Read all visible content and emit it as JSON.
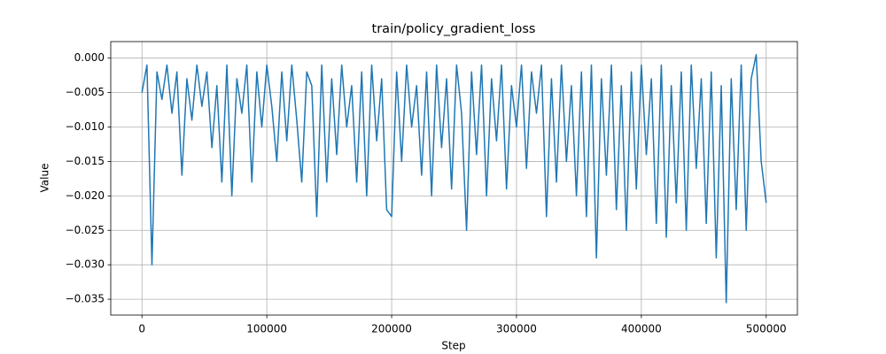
{
  "chart_data": {
    "type": "line",
    "title": "train/policy_gradient_loss",
    "x_label": "Step",
    "y_label": "Value",
    "x": [
      0,
      4000,
      8000,
      12000,
      16000,
      20000,
      24000,
      28000,
      32000,
      36000,
      40000,
      44000,
      48000,
      52000,
      56000,
      60000,
      64000,
      68000,
      72000,
      76000,
      80000,
      84000,
      88000,
      92000,
      96000,
      100000,
      104000,
      108000,
      112000,
      116000,
      120000,
      124000,
      128000,
      132000,
      136000,
      140000,
      144000,
      148000,
      152000,
      156000,
      160000,
      164000,
      168000,
      172000,
      176000,
      180000,
      184000,
      188000,
      192000,
      196000,
      200000,
      204000,
      208000,
      212000,
      216000,
      220000,
      224000,
      228000,
      232000,
      236000,
      240000,
      244000,
      248000,
      252000,
      256000,
      260000,
      264000,
      268000,
      272000,
      276000,
      280000,
      284000,
      288000,
      292000,
      296000,
      300000,
      304000,
      308000,
      312000,
      316000,
      320000,
      324000,
      328000,
      332000,
      336000,
      340000,
      344000,
      348000,
      352000,
      356000,
      360000,
      364000,
      368000,
      372000,
      376000,
      380000,
      384000,
      388000,
      392000,
      396000,
      400000,
      404000,
      408000,
      412000,
      416000,
      420000,
      424000,
      428000,
      432000,
      436000,
      440000,
      444000,
      448000,
      452000,
      456000,
      460000,
      464000,
      468000,
      472000,
      476000,
      480000,
      484000,
      488000,
      492000,
      496000,
      500000
    ],
    "series": [
      {
        "name": "train/policy_gradient_loss",
        "color": "#1f77b4",
        "values": [
          -0.005,
          -0.001,
          -0.03,
          -0.002,
          -0.006,
          -0.001,
          -0.008,
          -0.002,
          -0.017,
          -0.003,
          -0.009,
          -0.001,
          -0.007,
          -0.002,
          -0.013,
          -0.004,
          -0.018,
          -0.001,
          -0.02,
          -0.003,
          -0.008,
          -0.001,
          -0.018,
          -0.002,
          -0.01,
          -0.001,
          -0.007,
          -0.015,
          -0.002,
          -0.012,
          -0.001,
          -0.009,
          -0.018,
          -0.002,
          -0.004,
          -0.023,
          -0.001,
          -0.018,
          -0.003,
          -0.014,
          -0.001,
          -0.01,
          -0.004,
          -0.018,
          -0.002,
          -0.02,
          -0.001,
          -0.012,
          -0.003,
          -0.022,
          -0.023,
          -0.002,
          -0.015,
          -0.001,
          -0.01,
          -0.004,
          -0.017,
          -0.002,
          -0.02,
          -0.001,
          -0.013,
          -0.003,
          -0.019,
          -0.001,
          -0.008,
          -0.025,
          -0.002,
          -0.014,
          -0.001,
          -0.02,
          -0.003,
          -0.012,
          -0.001,
          -0.019,
          -0.004,
          -0.01,
          -0.001,
          -0.016,
          -0.002,
          -0.008,
          -0.001,
          -0.023,
          -0.003,
          -0.018,
          -0.001,
          -0.015,
          -0.004,
          -0.02,
          -0.002,
          -0.023,
          -0.001,
          -0.029,
          -0.003,
          -0.017,
          -0.001,
          -0.022,
          -0.004,
          -0.025,
          -0.002,
          -0.019,
          -0.001,
          -0.014,
          -0.003,
          -0.024,
          -0.001,
          -0.026,
          -0.004,
          -0.021,
          -0.002,
          -0.025,
          -0.001,
          -0.016,
          -0.003,
          -0.024,
          -0.002,
          -0.029,
          -0.004,
          -0.0355,
          -0.003,
          -0.022,
          -0.001,
          -0.025,
          -0.003,
          0.0005,
          -0.015,
          -0.021
        ]
      }
    ],
    "xlim": [
      -25000,
      525000
    ],
    "xticks": [
      0,
      100000,
      200000,
      300000,
      400000,
      500000
    ],
    "ylim": [
      -0.0373,
      0.0024
    ],
    "yticks": [
      {
        "value": 0,
        "label": "0.000"
      },
      {
        "value": -0.005,
        "label": "−0.005"
      },
      {
        "value": -0.01,
        "label": "−0.010"
      },
      {
        "value": -0.015,
        "label": "−0.015"
      },
      {
        "value": -0.02,
        "label": "−0.020"
      },
      {
        "value": -0.025,
        "label": "−0.025"
      },
      {
        "value": -0.03,
        "label": "−0.030"
      },
      {
        "value": -0.035,
        "label": "−0.035"
      }
    ],
    "grid": true
  }
}
